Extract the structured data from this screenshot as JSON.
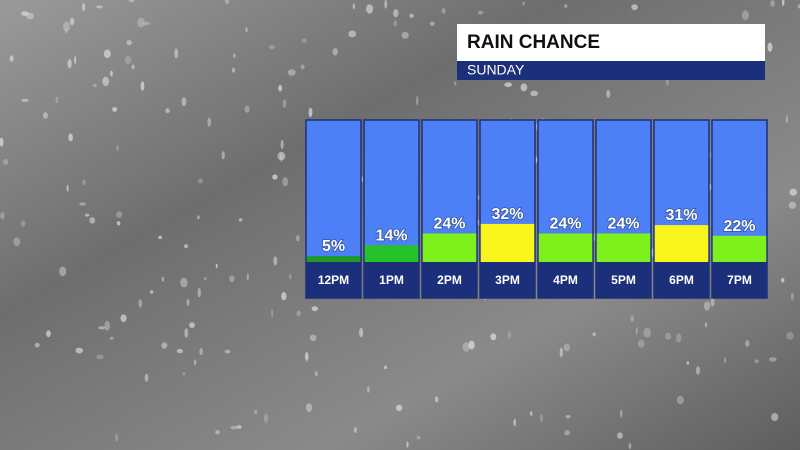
{
  "chart_data": {
    "type": "bar",
    "title": "RAIN CHANCE",
    "subtitle": "SUNDAY",
    "categories": [
      "12PM",
      "1PM",
      "2PM",
      "3PM",
      "4PM",
      "5PM",
      "6PM",
      "7PM"
    ],
    "values": [
      5,
      14,
      24,
      32,
      24,
      24,
      31,
      22
    ],
    "value_labels": [
      "5%",
      "14%",
      "24%",
      "32%",
      "24%",
      "24%",
      "31%",
      "22%"
    ],
    "colors": [
      "#1f9a2a",
      "#25c22a",
      "#7ef01c",
      "#f7f51c",
      "#7ef01c",
      "#7ef01c",
      "#f7f51c",
      "#7ef01c"
    ]
  }
}
